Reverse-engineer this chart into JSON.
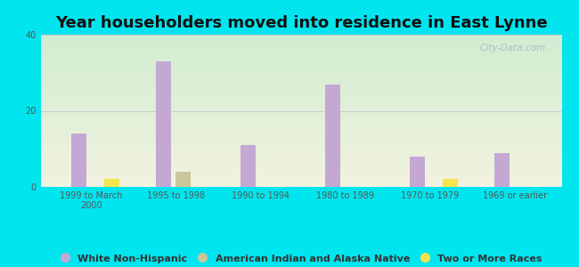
{
  "title": "Year householders moved into residence in East Lynne",
  "categories": [
    "1999 to March\n2000",
    "1995 to 1998",
    "1990 to 1994",
    "1980 to 1989",
    "1970 to 1979",
    "1969 or earlier"
  ],
  "series": {
    "White Non-Hispanic": [
      14,
      33,
      11,
      27,
      8,
      9
    ],
    "American Indian and Alaska Native": [
      0,
      4,
      0,
      0,
      0,
      0
    ],
    "Two or More Races": [
      2,
      0,
      0,
      0,
      2,
      0
    ]
  },
  "colors": {
    "White Non-Hispanic": "#c4a8d4",
    "American Indian and Alaska Native": "#c8c89a",
    "Two or More Races": "#f5e44a"
  },
  "bar_width": 0.18,
  "ylim": [
    0,
    40
  ],
  "yticks": [
    0,
    20,
    40
  ],
  "background_outer": "#00e5ee",
  "background_inner_topleft": "#d4edd4",
  "background_inner_topright": "#e8f0f0",
  "background_inner_bottom": "#f0f0e0",
  "grid_color": "#cccccc",
  "title_fontsize": 13,
  "tick_fontsize": 7,
  "legend_fontsize": 8,
  "watermark": "City-Data.com"
}
